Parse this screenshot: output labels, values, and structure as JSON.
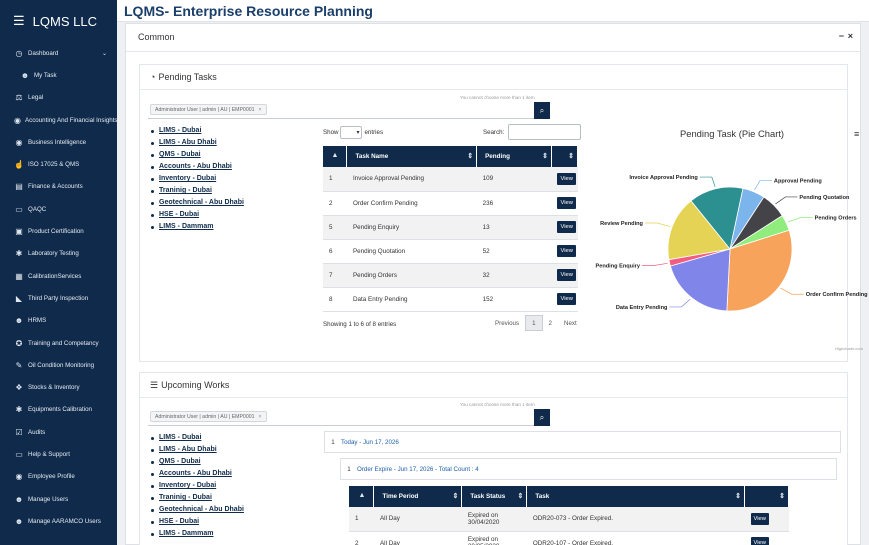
{
  "brand": {
    "name": "LQMS LLC"
  },
  "app": {
    "title": "LQMS- Enterprise Resource Planning"
  },
  "sidebar": {
    "items": [
      {
        "label": "Dashboard",
        "icon": "dashboard-icon",
        "glyph": "◷",
        "has_chevron": true
      },
      {
        "label": "My Task",
        "icon": "users-icon",
        "glyph": "☻",
        "sub": true
      },
      {
        "label": "Legal",
        "icon": "balance-scale-icon",
        "glyph": "⚖"
      },
      {
        "label": "Accounting And Financial Insights",
        "icon": "user-circle-icon",
        "glyph": "◉"
      },
      {
        "label": "Business Intelligence",
        "icon": "user-circle-icon",
        "glyph": "◉"
      },
      {
        "label": "ISO 17025 & QMS",
        "icon": "thumbs-up-icon",
        "glyph": "☝"
      },
      {
        "label": "Finance & Accounts",
        "icon": "money-icon",
        "glyph": "▤"
      },
      {
        "label": "QAQC",
        "icon": "chat-icon",
        "glyph": "▭"
      },
      {
        "label": "Product Certification",
        "icon": "truck-icon",
        "glyph": "▣"
      },
      {
        "label": "Laboratory Testing",
        "icon": "gear-icon",
        "glyph": "✱"
      },
      {
        "label": "CalibrationServices",
        "icon": "wrench-box-icon",
        "glyph": "▦"
      },
      {
        "label": "Third Party Inspection",
        "icon": "tag-icon",
        "glyph": "◣"
      },
      {
        "label": "HRMS",
        "icon": "users-icon",
        "glyph": "☻"
      },
      {
        "label": "Training and Competancy",
        "icon": "lightbulb-icon",
        "glyph": "✪"
      },
      {
        "label": "Oil Condition Monitoring",
        "icon": "wrench-icon",
        "glyph": "✎"
      },
      {
        "label": "Stocks & Inventory",
        "icon": "cubes-icon",
        "glyph": "❖"
      },
      {
        "label": "Equipments Calibration",
        "icon": "gear-icon",
        "glyph": "✱"
      },
      {
        "label": "Audits",
        "icon": "check-square-icon",
        "glyph": "☑"
      },
      {
        "label": "Help & Support",
        "icon": "monitor-icon",
        "glyph": "▭"
      },
      {
        "label": "Employee Profile",
        "icon": "user-circle-icon",
        "glyph": "◉"
      },
      {
        "label": "Manage Users",
        "icon": "users-icon",
        "glyph": "☻"
      },
      {
        "label": "Manage AARAMCO Users",
        "icon": "users-icon",
        "glyph": "☻"
      }
    ]
  },
  "common": {
    "title": "Common",
    "collapse": "−",
    "close": "×"
  },
  "pending": {
    "title": "Pending Tasks",
    "hint": "You cannot choose more than 1 item",
    "chip": "Administrator User | admin | AU | EMP0001",
    "chip_x": "×",
    "labs": [
      "LIMS - Dubai",
      "LIMS - Abu Dhabi",
      "QMS - Dubai",
      "Accounts - Abu Dhabi",
      "Inventory - Dubai",
      "Traninig - Dubai",
      "Geotechnical - Abu Dhabi",
      "HSE - Dubai",
      "LIMS - Dammam"
    ],
    "show_label": "Show",
    "entries_label": "entries",
    "search_label": "Search:",
    "columns": [
      "",
      "Task Name",
      "Pending",
      ""
    ],
    "rows": [
      {
        "id": "1",
        "task": "Invoice Approval Pending",
        "pending": "109",
        "action": "View"
      },
      {
        "id": "2",
        "task": "Order Confirm Pending",
        "pending": "236",
        "action": "View"
      },
      {
        "id": "5",
        "task": "Pending Enquiry",
        "pending": "13",
        "action": "View"
      },
      {
        "id": "6",
        "task": "Pending Quotation",
        "pending": "52",
        "action": "View"
      },
      {
        "id": "7",
        "task": "Pending Orders",
        "pending": "32",
        "action": "View"
      },
      {
        "id": "8",
        "task": "Data Entry Pending",
        "pending": "152",
        "action": "View"
      }
    ],
    "info": "Showing 1 to 6 of 8 entries",
    "pager": {
      "previous": "Previous",
      "pages": [
        "1",
        "2"
      ],
      "next": "Next"
    }
  },
  "chart_data": {
    "type": "pie",
    "title": "Pending Task (Pie Chart)",
    "credits": "Highcharts.com",
    "slices": [
      {
        "name": "Approval Pending",
        "value": 45,
        "color": "#7cb5ec"
      },
      {
        "name": "Pending Quotation",
        "value": 52,
        "color": "#434348"
      },
      {
        "name": "Pending Orders",
        "value": 32,
        "color": "#90ed7d"
      },
      {
        "name": "Order Confirm Pending",
        "value": 236,
        "color": "#f7a35c"
      },
      {
        "name": "Data Entry Pending",
        "value": 152,
        "color": "#8085e9"
      },
      {
        "name": "Pending Enquiry",
        "value": 13,
        "color": "#f15c80"
      },
      {
        "name": "Review Pending",
        "value": 130,
        "color": "#e4d354"
      },
      {
        "name": "Invoice Approval Pending",
        "value": 109,
        "color": "#2b908f"
      }
    ]
  },
  "upcoming": {
    "title": "Upcoming Works",
    "hint": "You cannot choose more than 1 item",
    "chip": "Administrator User | admin | AU | EMP0001",
    "chip_x": "×",
    "labs": [
      "LIMS - Dubai",
      "LIMS - Abu Dhabi",
      "QMS - Dubai",
      "Accounts - Abu Dhabi",
      "Inventory - Dubai",
      "Traninig - Dubai",
      "Geotechnical - Abu Dhabi",
      "HSE - Dubai",
      "LIMS - Dammam"
    ],
    "level1": {
      "num": "1",
      "label": "Today - Jun 17, 2026"
    },
    "level2": {
      "num": "1",
      "label": "Order Expire - Jun 17, 2026 - Total Count : 4"
    },
    "columns": [
      "",
      "Time Period",
      "Task Status",
      "Task",
      ""
    ],
    "rows": [
      {
        "id": "1",
        "period": "All Day",
        "status": "Expired on 30/04/2020",
        "task": "ODR20-073 - Order Expired.",
        "action": "View"
      },
      {
        "id": "2",
        "period": "All Day",
        "status": "Expired on 30/05/2020",
        "task": "ODR20-107 - Order Expired.",
        "action": "View"
      }
    ]
  }
}
